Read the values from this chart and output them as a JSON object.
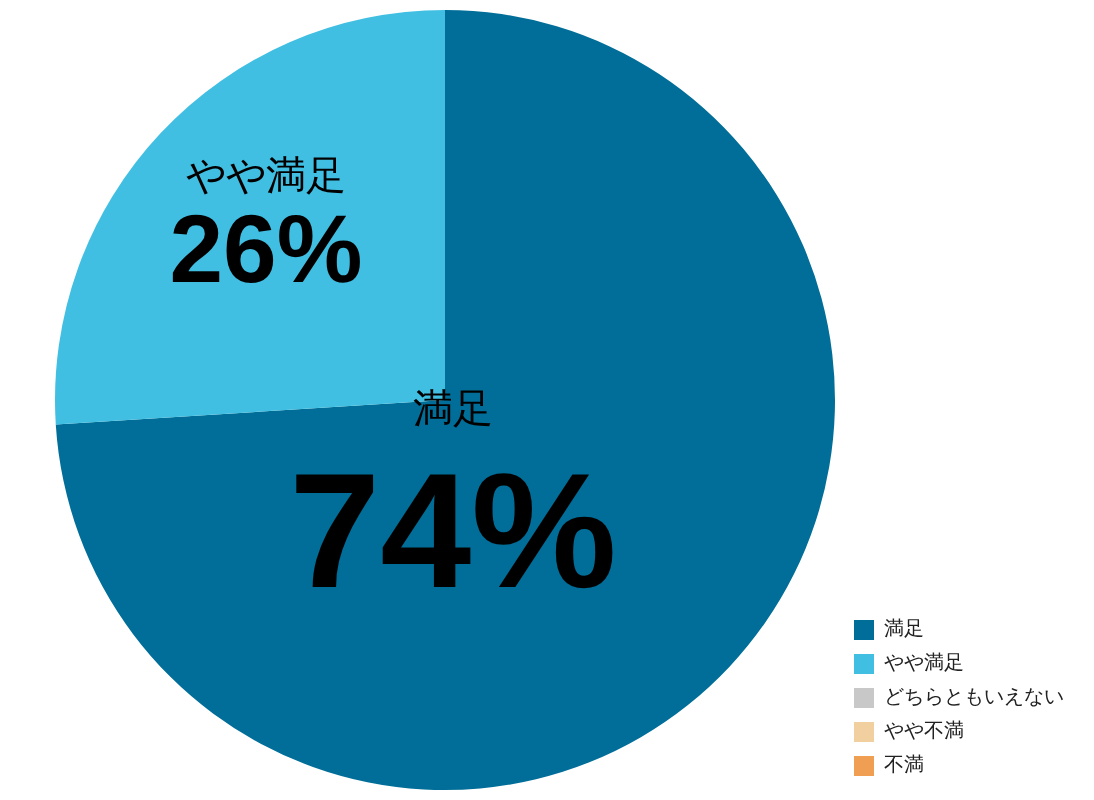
{
  "chart_data": {
    "type": "pie",
    "categories": [
      "満足",
      "やや満足",
      "どちらともいえない",
      "やや不満",
      "不満"
    ],
    "values": [
      74,
      26,
      0,
      0,
      0
    ],
    "colors": [
      "#006e98",
      "#40bfe2",
      "#c8c8c8",
      "#f2cf9e",
      "#ef9e52"
    ],
    "value_labels": [
      "74%",
      "26%",
      null,
      null,
      null
    ],
    "legend": "bottom right"
  }
}
